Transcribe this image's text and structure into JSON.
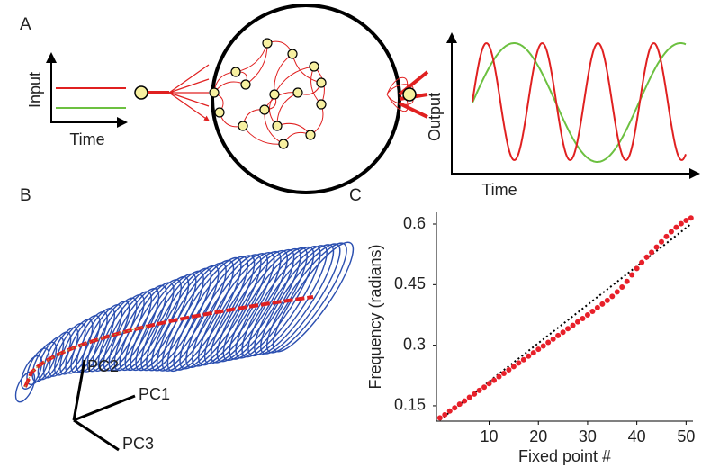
{
  "panels": [
    {
      "label": "A",
      "input_axis_label": "Input",
      "input_time_label": "Time",
      "output_axis_label": "Output",
      "output_time_label": "Time"
    },
    {
      "label": "B",
      "axes": [
        "PC1",
        "PC2",
        "PC3"
      ]
    },
    {
      "label": "C"
    }
  ],
  "chart_data": {
    "type": "scatter",
    "xlabel": "Fixed point #",
    "ylabel": "Frequency (radians)",
    "x": [
      0,
      1,
      2,
      3,
      4,
      5,
      6,
      7,
      8,
      9,
      10,
      11,
      12,
      13,
      14,
      15,
      16,
      17,
      18,
      19,
      20,
      21,
      22,
      23,
      24,
      25,
      26,
      27,
      28,
      29,
      30,
      31,
      32,
      33,
      34,
      35,
      36,
      37,
      38,
      39,
      40,
      41,
      42,
      43,
      44,
      45,
      46,
      47,
      48,
      49,
      50,
      51
    ],
    "values": [
      0.12,
      0.128,
      0.137,
      0.145,
      0.154,
      0.162,
      0.171,
      0.179,
      0.188,
      0.196,
      0.205,
      0.213,
      0.222,
      0.23,
      0.239,
      0.247,
      0.256,
      0.264,
      0.273,
      0.281,
      0.29,
      0.298,
      0.307,
      0.315,
      0.324,
      0.332,
      0.341,
      0.349,
      0.358,
      0.366,
      0.375,
      0.384,
      0.393,
      0.402,
      0.411,
      0.421,
      0.432,
      0.444,
      0.458,
      0.474,
      0.49,
      0.505,
      0.518,
      0.53,
      0.543,
      0.556,
      0.569,
      0.581,
      0.592,
      0.601,
      0.609,
      0.615
    ],
    "color": "#e8202a",
    "reference_line": {
      "x": [
        0,
        51
      ],
      "values": [
        0.115,
        0.6
      ],
      "color": "#000000"
    },
    "xlim": [
      -0.7,
      51.4
    ],
    "ylim": [
      0.112,
      0.629
    ],
    "xticks": [
      10,
      20,
      30,
      40,
      50
    ],
    "yticks": [
      0.15,
      0.3,
      0.45,
      0.6
    ]
  }
}
